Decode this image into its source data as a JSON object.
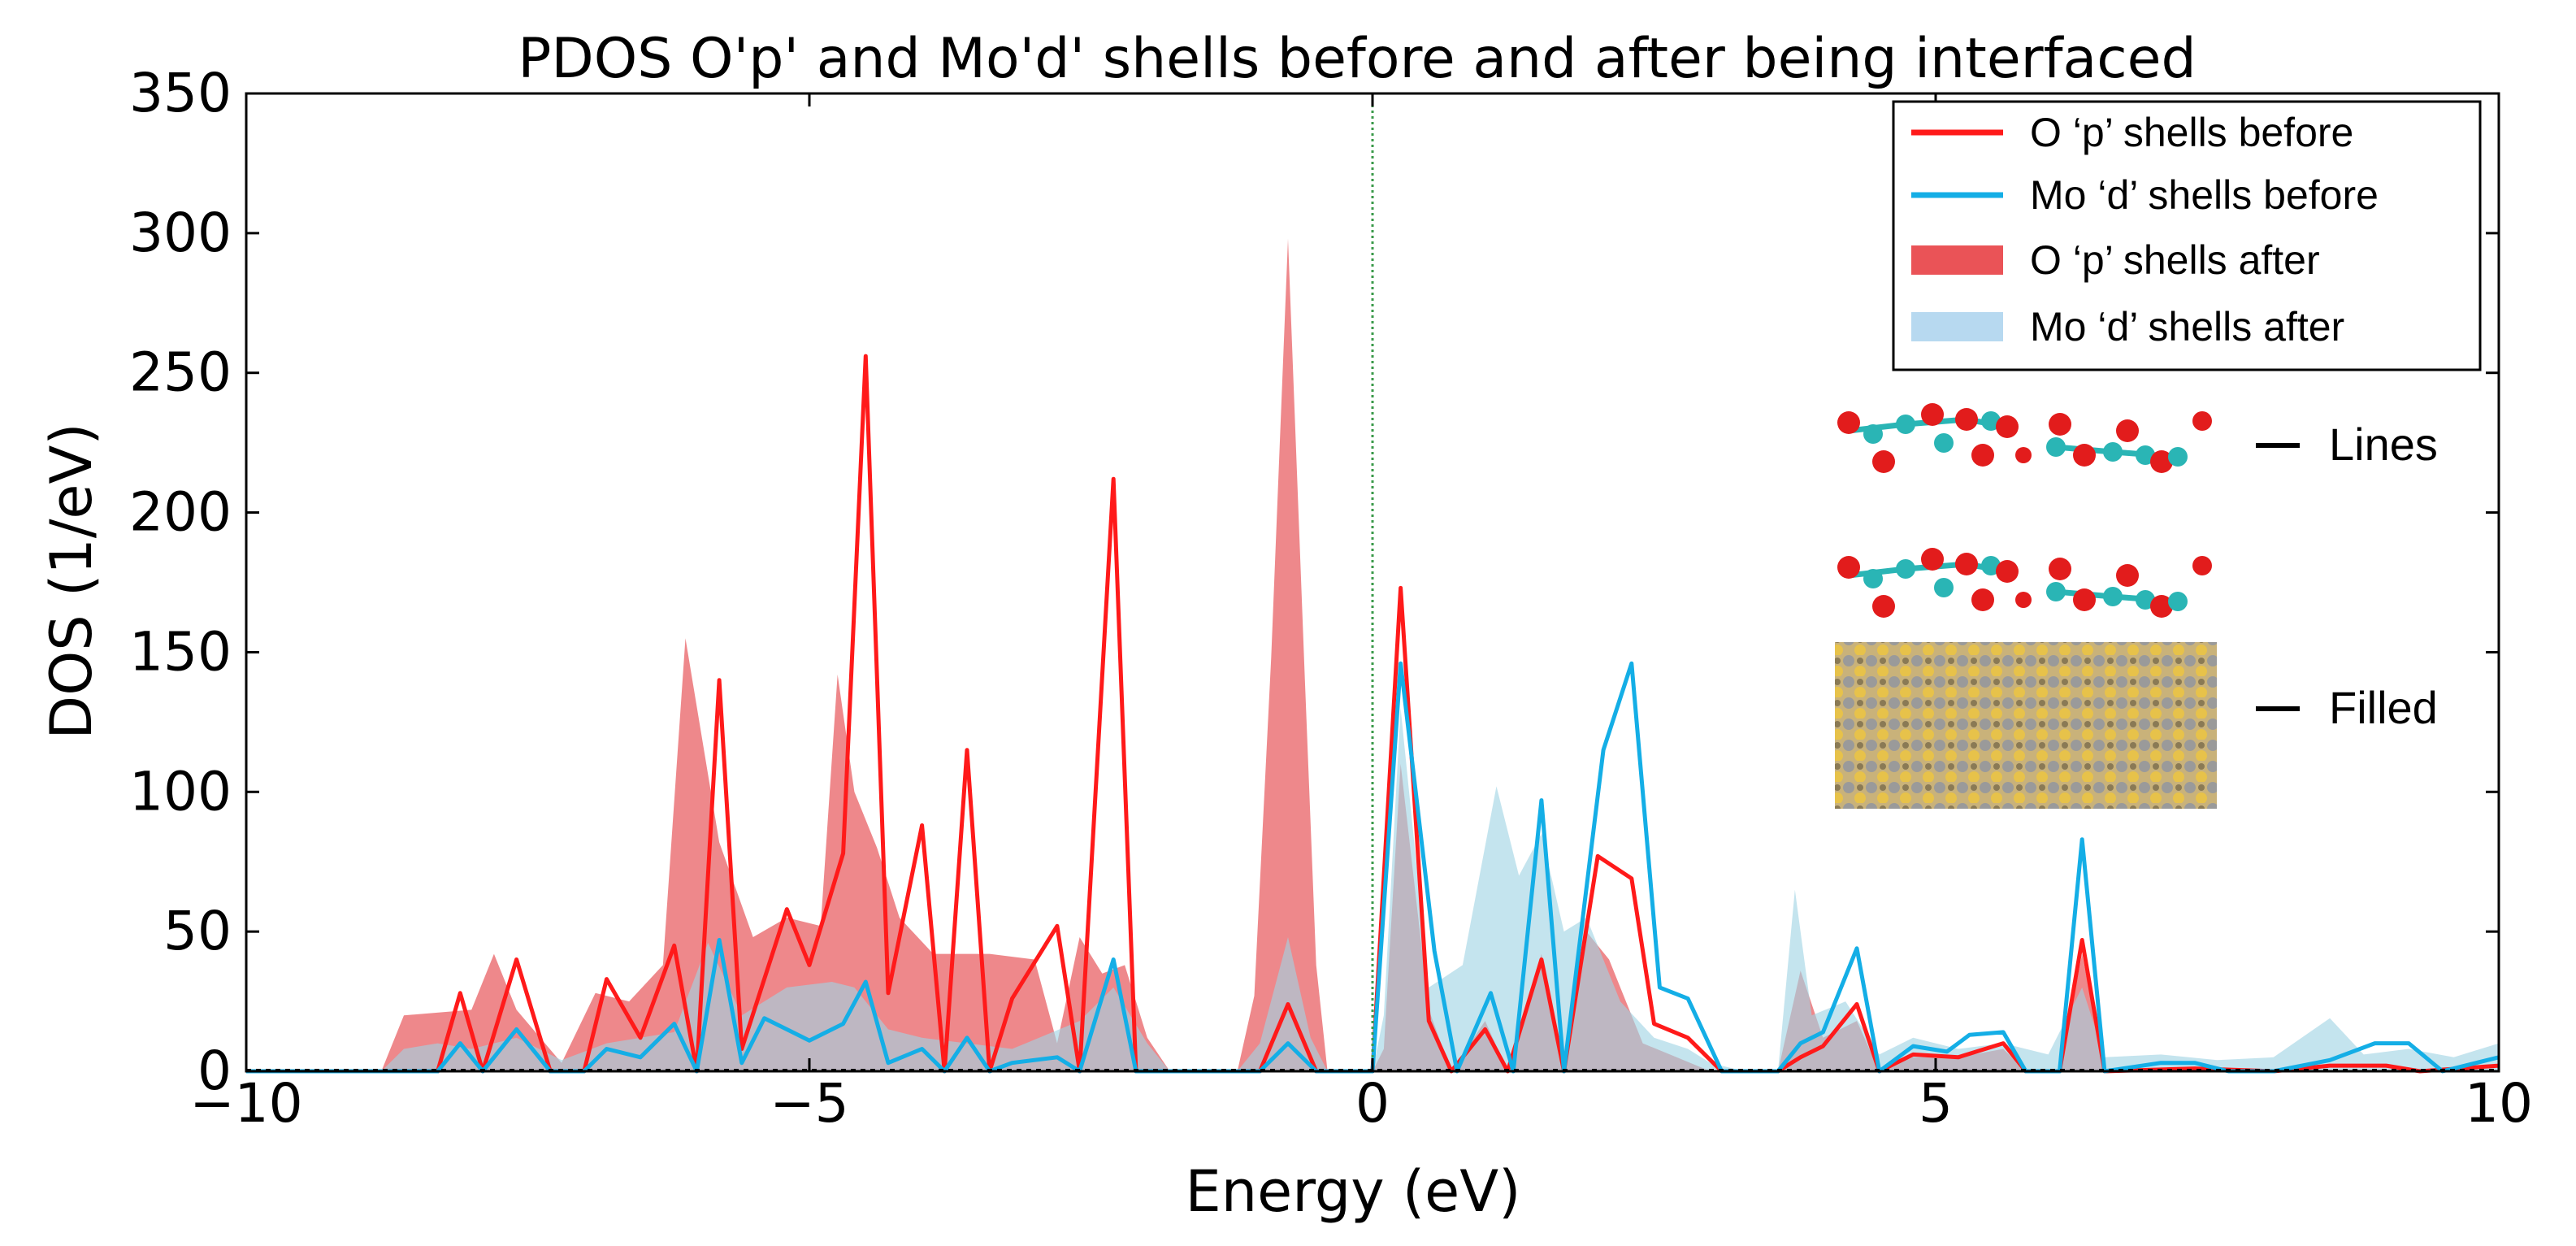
{
  "chart_data": {
    "type": "area",
    "title": "PDOS O'p' and Mo'd' shells before and after being interfaced",
    "xlabel": "Energy (eV)",
    "ylabel": "DOS (1/eV)",
    "xlim": [
      -10,
      10
    ],
    "ylim": [
      0,
      350
    ],
    "xticks": [
      -10,
      -5,
      0,
      5,
      10
    ],
    "xtick_labels": [
      "−10",
      "−5",
      "0",
      "5",
      "10"
    ],
    "yticks": [
      0,
      50,
      100,
      150,
      200,
      250,
      300,
      350
    ],
    "ytick_labels": [
      "0",
      "50",
      "100",
      "150",
      "200",
      "250",
      "300",
      "350"
    ],
    "fermi_level": 0,
    "colors": {
      "o_before": "#ff1a1a",
      "mo_before": "#14aee6",
      "o_after": "#e85a5e",
      "mo_after": "#9fd4e3",
      "fermi": "#3a9a4a",
      "frame": "#000000"
    },
    "series": [
      {
        "name": "O ‘p’ shells before",
        "style": "line",
        "color": "#ff1a1a",
        "points": [
          [
            -10,
            0
          ],
          [
            -8.8,
            0
          ],
          [
            -8.3,
            0
          ],
          [
            -8.1,
            28
          ],
          [
            -7.9,
            0
          ],
          [
            -7.6,
            40
          ],
          [
            -7.3,
            0
          ],
          [
            -7.0,
            0
          ],
          [
            -6.8,
            33
          ],
          [
            -6.5,
            12
          ],
          [
            -6.2,
            45
          ],
          [
            -6.0,
            0
          ],
          [
            -5.8,
            140
          ],
          [
            -5.6,
            8
          ],
          [
            -5.2,
            58
          ],
          [
            -5.0,
            38
          ],
          [
            -4.7,
            78
          ],
          [
            -4.5,
            256
          ],
          [
            -4.3,
            28
          ],
          [
            -4.0,
            88
          ],
          [
            -3.8,
            0
          ],
          [
            -3.6,
            115
          ],
          [
            -3.4,
            0
          ],
          [
            -3.2,
            26
          ],
          [
            -2.8,
            52
          ],
          [
            -2.6,
            0
          ],
          [
            -2.3,
            212
          ],
          [
            -2.1,
            0
          ],
          [
            -1.2,
            0
          ],
          [
            -1.0,
            0
          ],
          [
            -0.75,
            24
          ],
          [
            -0.5,
            0
          ],
          [
            0,
            0
          ],
          [
            0.25,
            173
          ],
          [
            0.5,
            18
          ],
          [
            0.7,
            0
          ],
          [
            1.0,
            15
          ],
          [
            1.2,
            0
          ],
          [
            1.5,
            40
          ],
          [
            1.7,
            0
          ],
          [
            2.0,
            77
          ],
          [
            2.3,
            69
          ],
          [
            2.5,
            17
          ],
          [
            2.8,
            12
          ],
          [
            3.1,
            0
          ],
          [
            3.6,
            0
          ],
          [
            3.8,
            5
          ],
          [
            4.0,
            9
          ],
          [
            4.3,
            24
          ],
          [
            4.5,
            0
          ],
          [
            4.8,
            6
          ],
          [
            5.2,
            5
          ],
          [
            5.6,
            10
          ],
          [
            5.8,
            0
          ],
          [
            6.1,
            0
          ],
          [
            6.3,
            47
          ],
          [
            6.5,
            0
          ],
          [
            7.3,
            1
          ],
          [
            8.0,
            0
          ],
          [
            8.5,
            2
          ],
          [
            9.0,
            2
          ],
          [
            9.3,
            0
          ],
          [
            10,
            2
          ]
        ]
      },
      {
        "name": "Mo ‘d’ shells before",
        "style": "line",
        "color": "#14aee6",
        "points": [
          [
            -10,
            0
          ],
          [
            -8.8,
            0
          ],
          [
            -8.3,
            0
          ],
          [
            -8.1,
            10
          ],
          [
            -7.9,
            0
          ],
          [
            -7.6,
            15
          ],
          [
            -7.3,
            0
          ],
          [
            -7.0,
            0
          ],
          [
            -6.8,
            8
          ],
          [
            -6.5,
            5
          ],
          [
            -6.2,
            17
          ],
          [
            -6.0,
            0
          ],
          [
            -5.8,
            47
          ],
          [
            -5.6,
            3
          ],
          [
            -5.4,
            19
          ],
          [
            -5.0,
            11
          ],
          [
            -4.7,
            17
          ],
          [
            -4.5,
            32
          ],
          [
            -4.3,
            3
          ],
          [
            -4.0,
            8
          ],
          [
            -3.8,
            0
          ],
          [
            -3.6,
            12
          ],
          [
            -3.4,
            0
          ],
          [
            -3.2,
            3
          ],
          [
            -2.8,
            5
          ],
          [
            -2.6,
            0
          ],
          [
            -2.3,
            40
          ],
          [
            -2.1,
            0
          ],
          [
            -1.2,
            0
          ],
          [
            -1.0,
            0
          ],
          [
            -0.75,
            10
          ],
          [
            -0.5,
            0
          ],
          [
            0,
            0
          ],
          [
            0.25,
            146
          ],
          [
            0.55,
            43
          ],
          [
            0.75,
            0
          ],
          [
            1.05,
            28
          ],
          [
            1.25,
            0
          ],
          [
            1.5,
            97
          ],
          [
            1.7,
            0
          ],
          [
            2.05,
            115
          ],
          [
            2.3,
            146
          ],
          [
            2.55,
            30
          ],
          [
            2.8,
            26
          ],
          [
            3.1,
            0
          ],
          [
            3.6,
            0
          ],
          [
            3.8,
            10
          ],
          [
            4.0,
            14
          ],
          [
            4.3,
            44
          ],
          [
            4.5,
            0
          ],
          [
            4.8,
            9
          ],
          [
            5.1,
            7
          ],
          [
            5.3,
            13
          ],
          [
            5.6,
            14
          ],
          [
            5.8,
            0
          ],
          [
            6.1,
            0
          ],
          [
            6.3,
            83
          ],
          [
            6.5,
            0
          ],
          [
            7.0,
            3
          ],
          [
            7.3,
            3
          ],
          [
            7.6,
            0
          ],
          [
            8.0,
            0
          ],
          [
            8.5,
            4
          ],
          [
            8.9,
            10
          ],
          [
            9.2,
            10
          ],
          [
            9.5,
            0
          ],
          [
            10,
            5
          ]
        ]
      },
      {
        "name": "O ‘p’ shells after",
        "style": "fill",
        "color": "#e85a5e",
        "points": [
          [
            -10,
            0
          ],
          [
            -8.8,
            0
          ],
          [
            -8.6,
            20
          ],
          [
            -8.0,
            22
          ],
          [
            -7.8,
            42
          ],
          [
            -7.6,
            22
          ],
          [
            -7.2,
            3
          ],
          [
            -6.9,
            28
          ],
          [
            -6.6,
            25
          ],
          [
            -6.3,
            38
          ],
          [
            -6.1,
            155
          ],
          [
            -5.8,
            82
          ],
          [
            -5.5,
            48
          ],
          [
            -5.2,
            55
          ],
          [
            -4.9,
            52
          ],
          [
            -4.75,
            142
          ],
          [
            -4.6,
            100
          ],
          [
            -4.4,
            80
          ],
          [
            -4.2,
            55
          ],
          [
            -3.9,
            42
          ],
          [
            -3.4,
            42
          ],
          [
            -3.0,
            40
          ],
          [
            -2.8,
            10
          ],
          [
            -2.6,
            48
          ],
          [
            -2.4,
            35
          ],
          [
            -2.2,
            38
          ],
          [
            -2.0,
            12
          ],
          [
            -1.8,
            0
          ],
          [
            -1.2,
            0
          ],
          [
            -1.05,
            27
          ],
          [
            -0.9,
            148
          ],
          [
            -0.75,
            298
          ],
          [
            -0.6,
            140
          ],
          [
            -0.5,
            38
          ],
          [
            -0.4,
            0
          ],
          [
            0,
            0
          ],
          [
            0.1,
            8
          ],
          [
            0.25,
            110
          ],
          [
            0.5,
            22
          ],
          [
            0.7,
            0
          ],
          [
            1.0,
            18
          ],
          [
            1.2,
            0
          ],
          [
            1.5,
            42
          ],
          [
            1.7,
            0
          ],
          [
            1.9,
            50
          ],
          [
            2.1,
            40
          ],
          [
            2.4,
            10
          ],
          [
            2.7,
            5
          ],
          [
            3.0,
            0
          ],
          [
            3.6,
            0
          ],
          [
            3.8,
            36
          ],
          [
            4.0,
            12
          ],
          [
            4.3,
            18
          ],
          [
            4.5,
            0
          ],
          [
            4.8,
            5
          ],
          [
            5.2,
            5
          ],
          [
            5.6,
            8
          ],
          [
            5.8,
            0
          ],
          [
            6.1,
            0
          ],
          [
            6.3,
            42
          ],
          [
            6.5,
            0
          ],
          [
            10,
            0
          ]
        ]
      },
      {
        "name": "Mo ‘d’ shells after",
        "style": "fill",
        "color": "#9fd4e3",
        "points": [
          [
            -10,
            0
          ],
          [
            -8.8,
            0
          ],
          [
            -8.6,
            8
          ],
          [
            -8.3,
            10
          ],
          [
            -8.0,
            8
          ],
          [
            -7.6,
            12
          ],
          [
            -7.2,
            4
          ],
          [
            -6.8,
            10
          ],
          [
            -6.5,
            12
          ],
          [
            -6.2,
            14
          ],
          [
            -5.9,
            46
          ],
          [
            -5.6,
            20
          ],
          [
            -5.2,
            30
          ],
          [
            -4.8,
            32
          ],
          [
            -4.6,
            30
          ],
          [
            -4.3,
            15
          ],
          [
            -4.0,
            12
          ],
          [
            -3.6,
            10
          ],
          [
            -3.2,
            8
          ],
          [
            -2.6,
            18
          ],
          [
            -2.3,
            30
          ],
          [
            -2.0,
            10
          ],
          [
            -1.8,
            0
          ],
          [
            -1.2,
            0
          ],
          [
            -1.0,
            10
          ],
          [
            -0.75,
            48
          ],
          [
            -0.55,
            12
          ],
          [
            -0.4,
            0
          ],
          [
            0,
            0
          ],
          [
            0.1,
            20
          ],
          [
            0.25,
            130
          ],
          [
            0.5,
            30
          ],
          [
            0.8,
            38
          ],
          [
            1.1,
            102
          ],
          [
            1.3,
            70
          ],
          [
            1.5,
            85
          ],
          [
            1.7,
            50
          ],
          [
            1.9,
            55
          ],
          [
            2.2,
            25
          ],
          [
            2.5,
            12
          ],
          [
            2.8,
            8
          ],
          [
            3.0,
            3
          ],
          [
            3.3,
            0
          ],
          [
            3.6,
            0
          ],
          [
            3.75,
            65
          ],
          [
            3.9,
            20
          ],
          [
            4.2,
            25
          ],
          [
            4.5,
            6
          ],
          [
            4.8,
            12
          ],
          [
            5.2,
            8
          ],
          [
            5.6,
            10
          ],
          [
            6.0,
            6
          ],
          [
            6.3,
            30
          ],
          [
            6.5,
            5
          ],
          [
            7.0,
            6
          ],
          [
            7.5,
            4
          ],
          [
            8.0,
            5
          ],
          [
            8.5,
            19
          ],
          [
            8.8,
            6
          ],
          [
            9.2,
            8
          ],
          [
            9.6,
            5
          ],
          [
            10,
            10
          ]
        ]
      }
    ],
    "legend": {
      "position": "top-right",
      "entries": [
        {
          "label": "O ‘p’ shells before",
          "kind": "line",
          "color": "#ff1a1a"
        },
        {
          "label": "Mo ‘d’ shells before",
          "kind": "line",
          "color": "#14aee6"
        },
        {
          "label": "O ‘p’ shells after",
          "kind": "patch",
          "color": "#ea5357"
        },
        {
          "label": "Mo ‘d’ shells after",
          "kind": "patch",
          "color": "#b7d9f0"
        }
      ]
    },
    "inset_labels": {
      "lines": "Lines",
      "filled": "Filled"
    }
  }
}
